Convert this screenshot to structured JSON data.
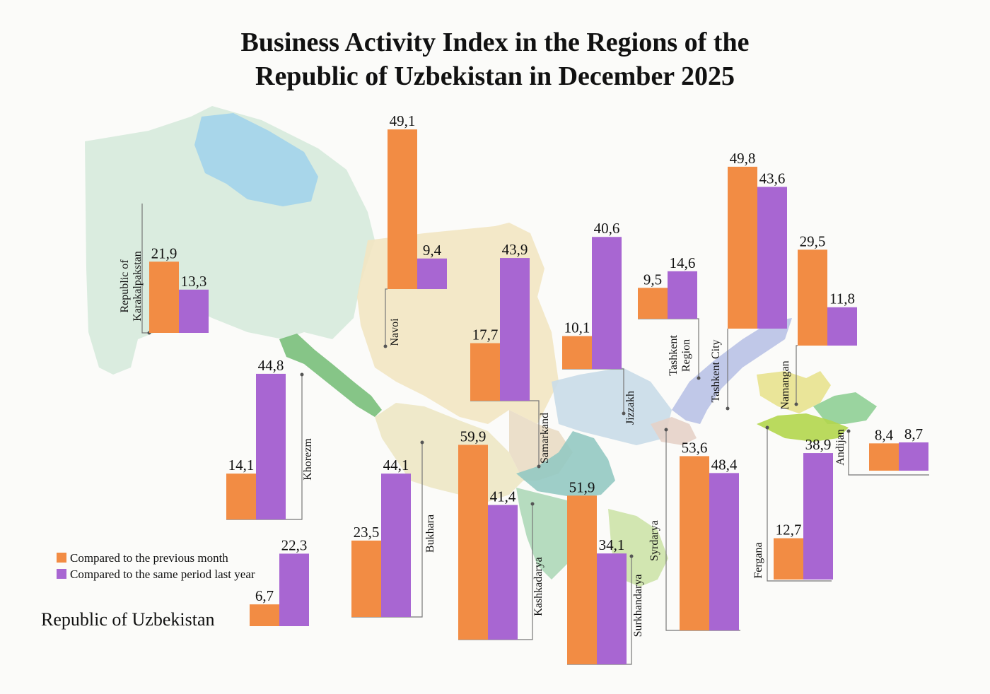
{
  "title_line1": "Business Activity Index in the Regions of the",
  "title_line2": "Republic of Uzbekistan in December 2025",
  "legend": [
    {
      "label": "Compared to the previous month",
      "color": "#f28c44"
    },
    {
      "label": "Compared to the same period last year",
      "color": "#a866d2"
    }
  ],
  "country_label": "Republic of Uzbekistan",
  "colors": {
    "prev_month": "#f28c44",
    "same_period": "#a866d2"
  },
  "chart_data": {
    "type": "bar",
    "series_names": [
      "Compared to the previous month",
      "Compared to the same period last year"
    ],
    "regions": [
      {
        "name": "Republic of Karakalpakstan",
        "prev_month": "21,9",
        "same_period": "13,3"
      },
      {
        "name": "Navoi",
        "prev_month": "49,1",
        "same_period": "9,4"
      },
      {
        "name": "Samarkand",
        "prev_month": "17,7",
        "same_period": "43,9"
      },
      {
        "name": "Jizzakh",
        "prev_month": "10,1",
        "same_period": "40,6"
      },
      {
        "name": "Tashkent Region",
        "prev_month": "9,5",
        "same_period": "14,6"
      },
      {
        "name": "Tashkent City",
        "prev_month": "49,8",
        "same_period": "43,6"
      },
      {
        "name": "Namangan",
        "prev_month": "29,5",
        "same_period": "11,8"
      },
      {
        "name": "Andijan",
        "prev_month": "8,4",
        "same_period": "8,7"
      },
      {
        "name": "Khorezm",
        "prev_month": "14,1",
        "same_period": "44,8"
      },
      {
        "name": "Bukhara",
        "prev_month": "23,5",
        "same_period": "44,1"
      },
      {
        "name": "Kashkadarya",
        "prev_month": "59,9",
        "same_period": "41,4"
      },
      {
        "name": "Surkhandarya",
        "prev_month": "51,9",
        "same_period": "34,1"
      },
      {
        "name": "Syrdarya",
        "prev_month": "53,6",
        "same_period": "48,4"
      },
      {
        "name": "Fergana",
        "prev_month": "12,7",
        "same_period": "38,9"
      },
      {
        "name": "Republic of Uzbekistan",
        "prev_month": "6,7",
        "same_period": "22,3"
      }
    ]
  }
}
